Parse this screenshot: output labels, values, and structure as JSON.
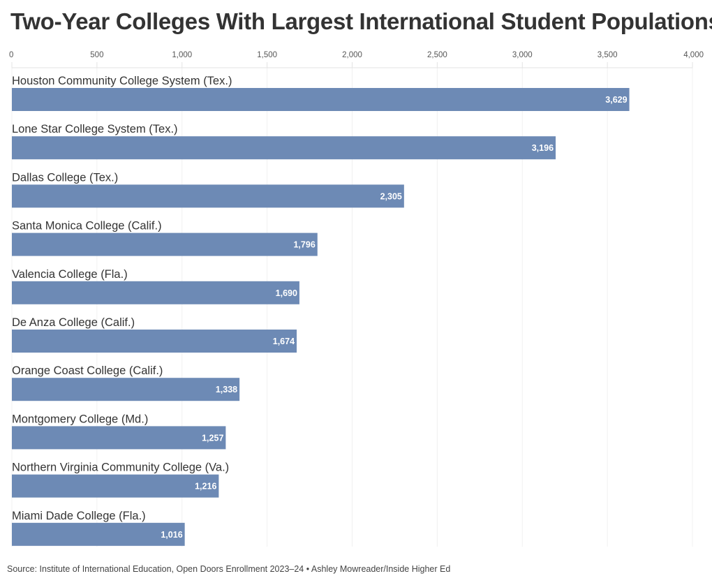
{
  "title": "Two-Year Colleges With Largest International Student Populations",
  "source": "Source: Institute of International Education, Open Doors Enrollment 2023–24 • Ashley Mowreader/Inside Higher Ed",
  "colors": {
    "bar": "#6d8ab5",
    "grid": "#e3e3e3",
    "value_label": "#ffffff"
  },
  "chart_data": {
    "type": "bar",
    "orientation": "horizontal",
    "title": "Two-Year Colleges With Largest International Student Populations",
    "xlim": [
      0,
      4000
    ],
    "x_ticks": [
      0,
      500,
      1000,
      1500,
      2000,
      2500,
      3000,
      3500,
      4000
    ],
    "x_tick_labels": [
      "0",
      "500",
      "1,000",
      "1,500",
      "2,000",
      "2,500",
      "3,000",
      "3,500",
      "4,000"
    ],
    "axis_position": "top",
    "grid": true,
    "categories": [
      "Houston Community College System (Tex.)",
      "Lone Star College System (Tex.)",
      "Dallas College (Tex.)",
      "Santa Monica College (Calif.)",
      "Valencia College (Fla.)",
      "De Anza College (Calif.)",
      "Orange Coast College (Calif.)",
      "Montgomery College (Md.)",
      "Northern Virginia Community College (Va.)",
      "Miami Dade College (Fla.)"
    ],
    "values": [
      3629,
      3196,
      2305,
      1796,
      1690,
      1674,
      1338,
      1257,
      1216,
      1016
    ],
    "value_labels": [
      "3,629",
      "3,196",
      "2,305",
      "1,796",
      "1,690",
      "1,674",
      "1,338",
      "1,257",
      "1,216",
      "1,016"
    ]
  }
}
